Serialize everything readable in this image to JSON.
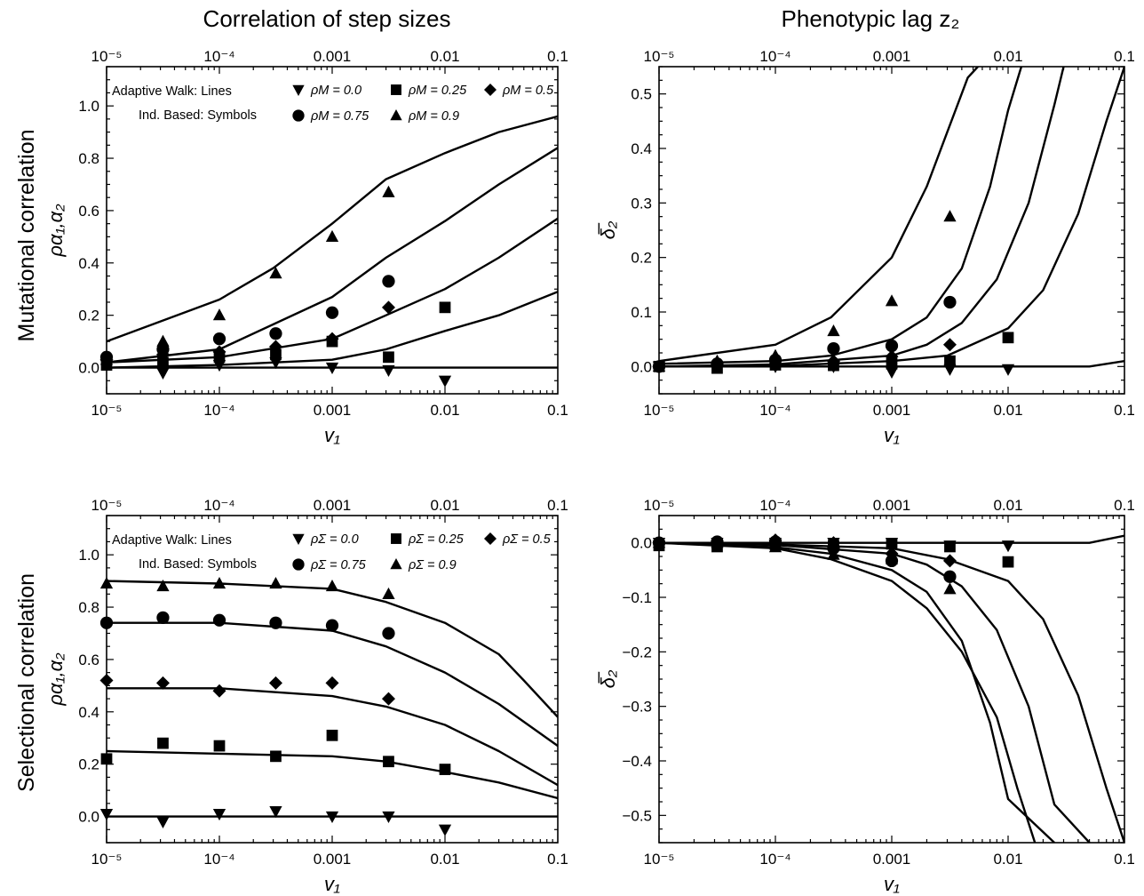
{
  "col_titles": [
    "Correlation of step sizes",
    "Phenotypic lag z₂"
  ],
  "row_titles": [
    "Mutational correlation",
    "Selectional correlation"
  ],
  "chart_data": [
    {
      "id": "mut_corr",
      "type": "line",
      "xscale": "log",
      "xlim": [
        1e-05,
        0.1
      ],
      "ylim": [
        -0.1,
        1.15
      ],
      "xticks": [
        1e-05,
        0.0001,
        0.001,
        0.01,
        0.1
      ],
      "xtick_labels": [
        "10⁻⁵",
        "10⁻⁴",
        "0.001",
        "0.01",
        "0.1"
      ],
      "yticks": [
        0,
        0.2,
        0.4,
        0.6,
        0.8,
        1.0
      ],
      "ytick_labels": [
        "0.0",
        "0.2",
        "0.4",
        "0.6",
        "0.8",
        "1.0"
      ],
      "xlabel": "v₁",
      "ylabel": "ρα₁,α₂",
      "legend": {
        "placement": "top-left",
        "line1": "Adaptive Walk:  Lines",
        "line2": "Ind. Based:  Symbols",
        "entries": [
          {
            "marker": "triangle-down",
            "label": "ρM = 0.0"
          },
          {
            "marker": "square",
            "label": "ρM = 0.25"
          },
          {
            "marker": "diamond",
            "label": "ρM = 0.5"
          },
          {
            "marker": "circle",
            "label": "ρM = 0.75"
          },
          {
            "marker": "triangle-up",
            "label": "ρM = 0.9"
          }
        ]
      },
      "lines": [
        {
          "x": [
            1e-05,
            0.0001,
            0.001,
            0.01,
            0.1
          ],
          "y": [
            0.0,
            0.0,
            0.0,
            0.0,
            0.0
          ]
        },
        {
          "x": [
            1e-05,
            0.0001,
            0.001,
            0.003,
            0.01,
            0.03,
            0.1
          ],
          "y": [
            0.0,
            0.01,
            0.03,
            0.07,
            0.14,
            0.2,
            0.29
          ]
        },
        {
          "x": [
            1e-05,
            0.0001,
            0.001,
            0.003,
            0.01,
            0.03,
            0.1
          ],
          "y": [
            0.02,
            0.04,
            0.11,
            0.2,
            0.3,
            0.42,
            0.57
          ]
        },
        {
          "x": [
            1e-05,
            0.0001,
            0.001,
            0.003,
            0.01,
            0.03,
            0.1
          ],
          "y": [
            0.02,
            0.07,
            0.27,
            0.42,
            0.56,
            0.7,
            0.84
          ]
        },
        {
          "x": [
            1e-05,
            0.0001,
            0.0003,
            0.001,
            0.003,
            0.01,
            0.03,
            0.1
          ],
          "y": [
            0.1,
            0.26,
            0.38,
            0.55,
            0.72,
            0.82,
            0.9,
            0.96
          ]
        }
      ],
      "points": [
        {
          "marker": "triangle-down",
          "x": [
            1e-05,
            3.16e-05,
            0.0001,
            0.000316,
            0.001,
            0.00316,
            0.01
          ],
          "y": [
            0.01,
            -0.02,
            0.01,
            0.02,
            0.0,
            -0.01,
            -0.05
          ]
        },
        {
          "marker": "square",
          "x": [
            1e-05,
            3.16e-05,
            0.0001,
            0.000316,
            0.001,
            0.00316,
            0.01
          ],
          "y": [
            0.01,
            0.02,
            0.04,
            0.05,
            0.1,
            0.04,
            0.23
          ]
        },
        {
          "marker": "diamond",
          "x": [
            1e-05,
            3.16e-05,
            0.0001,
            0.000316,
            0.001,
            0.00316
          ],
          "y": [
            0.03,
            0.05,
            0.06,
            0.08,
            0.11,
            0.23
          ]
        },
        {
          "marker": "circle",
          "x": [
            1e-05,
            3.16e-05,
            0.0001,
            0.000316,
            0.001,
            0.00316
          ],
          "y": [
            0.04,
            0.07,
            0.11,
            0.13,
            0.21,
            0.33
          ]
        },
        {
          "marker": "triangle-up",
          "x": [
            1e-05,
            3.16e-05,
            0.0001,
            0.000316,
            0.001,
            0.00316
          ],
          "y": [
            0.03,
            0.1,
            0.2,
            0.36,
            0.5,
            0.67
          ]
        }
      ]
    },
    {
      "id": "mut_lag",
      "type": "line",
      "xscale": "log",
      "xlim": [
        1e-05,
        0.1
      ],
      "ylim": [
        -0.05,
        0.55
      ],
      "xticks": [
        1e-05,
        0.0001,
        0.001,
        0.01,
        0.1
      ],
      "xtick_labels": [
        "10⁻⁵",
        "10⁻⁴",
        "0.001",
        "0.01",
        "0.1"
      ],
      "yticks": [
        0,
        0.1,
        0.2,
        0.3,
        0.4,
        0.5
      ],
      "ytick_labels": [
        "0.0",
        "0.1",
        "0.2",
        "0.3",
        "0.4",
        "0.5"
      ],
      "xlabel": "v₁",
      "ylabel": "δ̅₂",
      "lines": [
        {
          "x": [
            1e-05,
            0.0001,
            0.001,
            0.01,
            0.05,
            0.1
          ],
          "y": [
            0.0,
            0.0,
            0.0,
            0.0,
            0.0,
            0.01
          ]
        },
        {
          "x": [
            1e-05,
            0.0001,
            0.001,
            0.003,
            0.01,
            0.02,
            0.04,
            0.07,
            0.1
          ],
          "y": [
            0.0,
            0.001,
            0.01,
            0.02,
            0.07,
            0.14,
            0.28,
            0.45,
            0.55
          ]
        },
        {
          "x": [
            1e-05,
            0.0001,
            0.001,
            0.002,
            0.004,
            0.008,
            0.015,
            0.025,
            0.03
          ],
          "y": [
            0.0,
            0.004,
            0.02,
            0.04,
            0.08,
            0.16,
            0.3,
            0.48,
            0.55
          ]
        },
        {
          "x": [
            1e-05,
            0.0001,
            0.0003,
            0.001,
            0.002,
            0.004,
            0.007,
            0.01,
            0.013
          ],
          "y": [
            0.005,
            0.01,
            0.02,
            0.05,
            0.09,
            0.18,
            0.33,
            0.47,
            0.55
          ]
        },
        {
          "x": [
            1e-05,
            0.0001,
            0.0003,
            0.001,
            0.002,
            0.003,
            0.0045,
            0.0055
          ],
          "y": [
            0.01,
            0.04,
            0.09,
            0.2,
            0.33,
            0.43,
            0.53,
            0.55
          ]
        }
      ],
      "points": [
        {
          "marker": "triangle-down",
          "x": [
            1e-05,
            3.16e-05,
            0.0001,
            0.000316,
            0.001,
            0.00316,
            0.01
          ],
          "y": [
            0.0,
            0.0,
            0.0,
            0.0,
            -0.01,
            -0.005,
            -0.005
          ]
        },
        {
          "marker": "square",
          "x": [
            1e-05,
            3.16e-05,
            0.0001,
            0.000316,
            0.001,
            0.00316,
            0.01
          ],
          "y": [
            0.0,
            -0.003,
            0.003,
            0.002,
            0.005,
            0.01,
            0.053
          ]
        },
        {
          "marker": "diamond",
          "x": [
            1e-05,
            3.16e-05,
            0.0001,
            0.000316,
            0.001,
            0.00316
          ],
          "y": [
            0.0,
            0.003,
            0.005,
            0.01,
            0.018,
            0.04
          ]
        },
        {
          "marker": "circle",
          "x": [
            1e-05,
            3.16e-05,
            0.0001,
            0.000316,
            0.001,
            0.00316
          ],
          "y": [
            0.0,
            0.005,
            0.012,
            0.033,
            0.038,
            0.118
          ]
        },
        {
          "marker": "triangle-up",
          "x": [
            1e-05,
            3.16e-05,
            0.0001,
            0.000316,
            0.001,
            0.00316
          ],
          "y": [
            0.0,
            0.01,
            0.02,
            0.065,
            0.12,
            0.275
          ]
        }
      ]
    },
    {
      "id": "sel_corr",
      "type": "line",
      "xscale": "log",
      "xlim": [
        1e-05,
        0.1
      ],
      "ylim": [
        -0.1,
        1.15
      ],
      "xticks": [
        1e-05,
        0.0001,
        0.001,
        0.01,
        0.1
      ],
      "xtick_labels": [
        "10⁻⁵",
        "10⁻⁴",
        "0.001",
        "0.01",
        "0.1"
      ],
      "yticks": [
        0,
        0.2,
        0.4,
        0.6,
        0.8,
        1.0
      ],
      "ytick_labels": [
        "0.0",
        "0.2",
        "0.4",
        "0.6",
        "0.8",
        "1.0"
      ],
      "xlabel": "v₁",
      "ylabel": "ρα₁,α₂",
      "legend": {
        "placement": "top-left",
        "line1": "Adaptive Walk:  Lines",
        "line2": "Ind. Based:  Symbols",
        "entries": [
          {
            "marker": "triangle-down",
            "label": "ρΣ = 0.0"
          },
          {
            "marker": "square",
            "label": "ρΣ = 0.25"
          },
          {
            "marker": "diamond",
            "label": "ρΣ = 0.5"
          },
          {
            "marker": "circle",
            "label": "ρΣ = 0.75"
          },
          {
            "marker": "triangle-up",
            "label": "ρΣ = 0.9"
          }
        ]
      },
      "lines": [
        {
          "x": [
            1e-05,
            0.0001,
            0.001,
            0.01,
            0.1
          ],
          "y": [
            0.0,
            0.0,
            0.0,
            0.0,
            0.0
          ]
        },
        {
          "x": [
            1e-05,
            0.0001,
            0.001,
            0.003,
            0.01,
            0.03,
            0.1
          ],
          "y": [
            0.25,
            0.24,
            0.23,
            0.21,
            0.17,
            0.13,
            0.07
          ]
        },
        {
          "x": [
            1e-05,
            0.0001,
            0.001,
            0.003,
            0.01,
            0.03,
            0.1
          ],
          "y": [
            0.49,
            0.49,
            0.46,
            0.42,
            0.35,
            0.25,
            0.12
          ]
        },
        {
          "x": [
            1e-05,
            0.0001,
            0.001,
            0.003,
            0.01,
            0.03,
            0.1
          ],
          "y": [
            0.74,
            0.74,
            0.71,
            0.65,
            0.55,
            0.43,
            0.27
          ]
        },
        {
          "x": [
            1e-05,
            0.0001,
            0.001,
            0.003,
            0.01,
            0.03,
            0.05,
            0.1
          ],
          "y": [
            0.9,
            0.89,
            0.87,
            0.82,
            0.74,
            0.62,
            0.52,
            0.38
          ]
        }
      ],
      "points": [
        {
          "marker": "triangle-down",
          "x": [
            1e-05,
            3.16e-05,
            0.0001,
            0.000316,
            0.001,
            0.00316,
            0.01
          ],
          "y": [
            0.01,
            -0.02,
            0.01,
            0.02,
            0.0,
            0.0,
            -0.05
          ]
        },
        {
          "marker": "square",
          "x": [
            1e-05,
            3.16e-05,
            0.0001,
            0.000316,
            0.001,
            0.00316,
            0.01
          ],
          "y": [
            0.22,
            0.28,
            0.27,
            0.23,
            0.31,
            0.21,
            0.18
          ]
        },
        {
          "marker": "diamond",
          "x": [
            1e-05,
            3.16e-05,
            0.0001,
            0.000316,
            0.001,
            0.00316
          ],
          "y": [
            0.52,
            0.51,
            0.48,
            0.51,
            0.51,
            0.45
          ]
        },
        {
          "marker": "circle",
          "x": [
            1e-05,
            3.16e-05,
            0.0001,
            0.000316,
            0.001,
            0.00316
          ],
          "y": [
            0.74,
            0.76,
            0.75,
            0.74,
            0.73,
            0.7
          ]
        },
        {
          "marker": "triangle-up",
          "x": [
            1e-05,
            3.16e-05,
            0.0001,
            0.000316,
            0.001,
            0.00316
          ],
          "y": [
            0.89,
            0.88,
            0.89,
            0.89,
            0.88,
            0.85
          ]
        }
      ]
    },
    {
      "id": "sel_lag",
      "type": "line",
      "xscale": "log",
      "xlim": [
        1e-05,
        0.1
      ],
      "ylim": [
        -0.55,
        0.05
      ],
      "xticks": [
        1e-05,
        0.0001,
        0.001,
        0.01,
        0.1
      ],
      "xtick_labels": [
        "10⁻⁵",
        "10⁻⁴",
        "0.001",
        "0.01",
        "0.1"
      ],
      "yticks": [
        0,
        -0.1,
        -0.2,
        -0.3,
        -0.4,
        -0.5
      ],
      "ytick_labels": [
        "0.0",
        "−0.1",
        "−0.2",
        "−0.3",
        "−0.4",
        "−0.5"
      ],
      "xlabel": "v₁",
      "ylabel": "δ̅₂",
      "lines": [
        {
          "x": [
            1e-05,
            0.0001,
            0.001,
            0.01,
            0.05,
            0.1
          ],
          "y": [
            0.0,
            0.0,
            0.0,
            0.0,
            0.0,
            0.013
          ]
        },
        {
          "x": [
            1e-05,
            0.0001,
            0.001,
            0.003,
            0.01,
            0.02,
            0.04,
            0.07,
            0.1
          ],
          "y": [
            0.0,
            -0.003,
            -0.01,
            -0.03,
            -0.07,
            -0.14,
            -0.28,
            -0.45,
            -0.55
          ]
        },
        {
          "x": [
            1e-05,
            0.0001,
            0.001,
            0.002,
            0.004,
            0.008,
            0.015,
            0.025,
            0.05
          ],
          "y": [
            0.0,
            -0.004,
            -0.02,
            -0.04,
            -0.08,
            -0.16,
            -0.3,
            -0.48,
            -0.55
          ]
        },
        {
          "x": [
            1e-05,
            0.0001,
            0.0003,
            0.001,
            0.002,
            0.004,
            0.007,
            0.01,
            0.025
          ],
          "y": [
            0.0,
            -0.008,
            -0.02,
            -0.05,
            -0.09,
            -0.18,
            -0.33,
            -0.47,
            -0.55
          ]
        },
        {
          "x": [
            1e-05,
            0.0001,
            0.0003,
            0.001,
            0.002,
            0.004,
            0.008,
            0.012,
            0.017
          ],
          "y": [
            0.0,
            -0.01,
            -0.03,
            -0.07,
            -0.12,
            -0.2,
            -0.32,
            -0.45,
            -0.55
          ]
        }
      ],
      "points": [
        {
          "marker": "triangle-down",
          "x": [
            1e-05,
            3.16e-05,
            0.0001,
            0.000316,
            0.001,
            0.00316,
            0.01
          ],
          "y": [
            0.0,
            0.0,
            0.0,
            0.0,
            0.0,
            -0.005,
            -0.005
          ]
        },
        {
          "marker": "square",
          "x": [
            1e-05,
            3.16e-05,
            0.0001,
            0.000316,
            0.001,
            0.00316,
            0.01
          ],
          "y": [
            -0.005,
            -0.007,
            -0.003,
            -0.005,
            -0.002,
            -0.007,
            -0.035
          ]
        },
        {
          "marker": "diamond",
          "x": [
            1e-05,
            3.16e-05,
            0.0001,
            0.000316,
            0.001,
            0.00316
          ],
          "y": [
            0.0,
            0.0,
            0.005,
            0.0,
            -0.02,
            -0.033
          ]
        },
        {
          "marker": "circle",
          "x": [
            1e-05,
            3.16e-05,
            0.0001,
            0.000316,
            0.001,
            0.00316
          ],
          "y": [
            0.0,
            0.002,
            0.002,
            -0.01,
            -0.033,
            -0.062
          ]
        },
        {
          "marker": "triangle-up",
          "x": [
            1e-05,
            3.16e-05,
            0.0001,
            0.000316,
            0.001,
            0.00316
          ],
          "y": [
            0.0,
            0.0,
            -0.008,
            -0.022,
            -0.03,
            -0.085
          ]
        }
      ]
    }
  ]
}
